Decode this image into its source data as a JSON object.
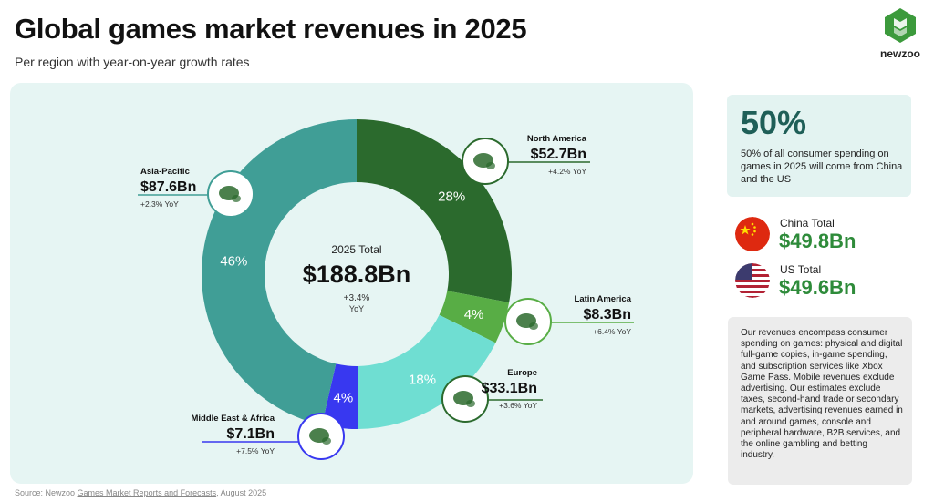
{
  "header": {
    "title": "Global games market revenues in 2025",
    "subtitle": "Per region with year-on-year growth rates"
  },
  "brand": {
    "name": "newzoo",
    "color": "#3c9a3c"
  },
  "chart_data": {
    "type": "pie",
    "donut": true,
    "center": {
      "label": "2025 Total",
      "value": "$188.8Bn",
      "growth": "+3.4%",
      "growth_unit": "YoY"
    },
    "slices": [
      {
        "name": "North America",
        "value_label": "$52.7Bn",
        "value": 52.7,
        "percent": 28,
        "percent_label": "28%",
        "growth": "+4.2% YoY",
        "color": "#2b6a2d",
        "icon": "north-america-map-icon",
        "label_side": "right"
      },
      {
        "name": "Latin America",
        "value_label": "$8.3Bn",
        "value": 8.3,
        "percent": 4,
        "percent_label": "4%",
        "growth": "+6.4% YoY",
        "color": "#58ad45",
        "icon": "latin-america-map-icon",
        "label_side": "right"
      },
      {
        "name": "Europe",
        "value_label": "$33.1Bn",
        "value": 33.1,
        "percent": 18,
        "percent_label": "18%",
        "growth": "+3.6% YoY",
        "color": "#6fded2",
        "icon": "europe-map-icon",
        "label_side": "right"
      },
      {
        "name": "Middle East & Africa",
        "value_label": "$7.1Bn",
        "value": 7.1,
        "percent": 4,
        "percent_label": "4%",
        "growth": "+7.5% YoY",
        "color": "#3838f0",
        "icon": "africa-map-icon",
        "label_side": "left"
      },
      {
        "name": "Asia-Pacific",
        "value_label": "$87.6Bn",
        "value": 87.6,
        "percent": 46,
        "percent_label": "46%",
        "growth": "+2.3% YoY",
        "color": "#409e96",
        "icon": "asia-pacific-map-icon",
        "label_side": "left"
      }
    ]
  },
  "sidebar": {
    "highlight": {
      "value": "50%",
      "text": "50% of all consumer spending on games in 2025 will come from China and the US"
    },
    "countries": [
      {
        "label": "China Total",
        "value": "$49.8Bn",
        "flag": "china-flag-icon"
      },
      {
        "label": "US Total",
        "value": "$49.6Bn",
        "flag": "us-flag-icon"
      }
    ],
    "note": "Our revenues encompass consumer spending on games: physical and digital full-game copies, in-game spending, and subscription services like Xbox Game Pass. Mobile revenues exclude advertising. Our estimates exclude taxes, second-hand trade or secondary markets, advertising revenues earned in and around games, console and peripheral hardware, B2B services, and the online gambling and betting industry."
  },
  "footer": {
    "source_prefix": "Source: Newzoo ",
    "source_link": "Games Market Reports and Forecasts",
    "source_suffix": ", August 2025"
  }
}
